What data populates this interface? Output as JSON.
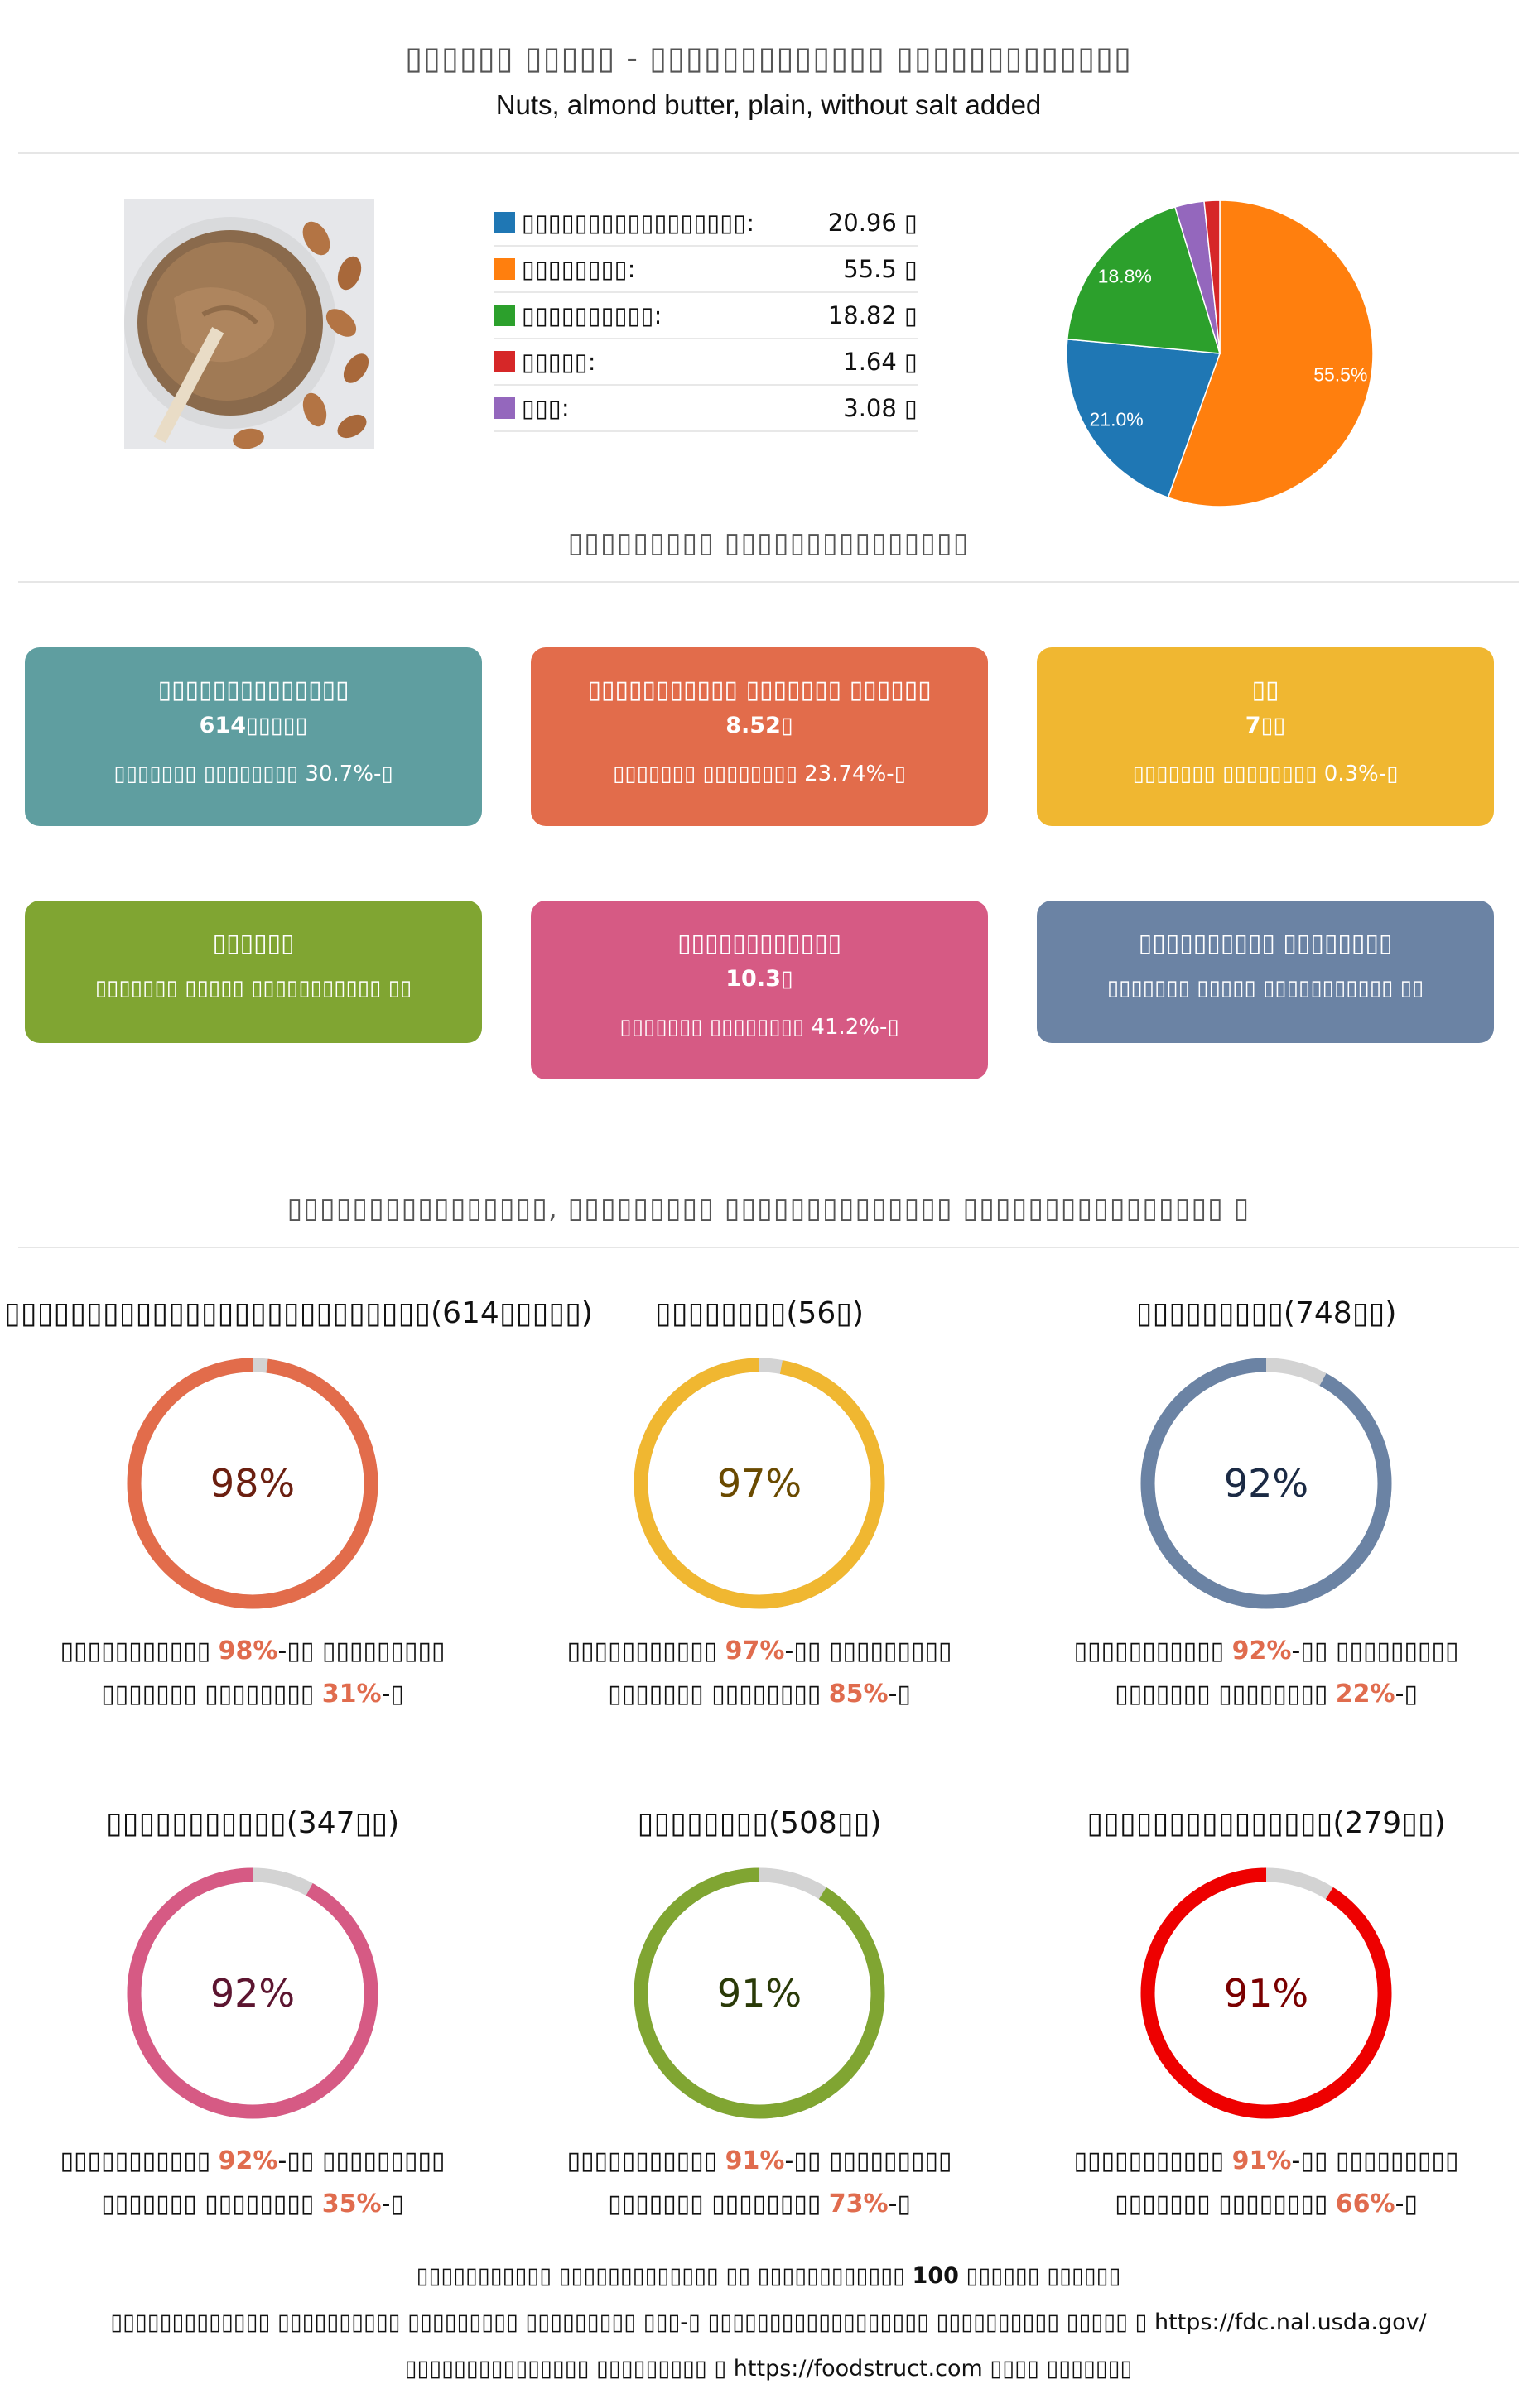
{
  "header": {
    "title": "▯▯▯▯▯▯ ▯▯▯▯▯ - ▯▯▯▯▯▯▯▯▯▯▯▯▯ ▯▯▯▯▯▯▯▯▯▯▯▯▯",
    "subtitle": "Nuts, almond butter, plain, without salt added"
  },
  "legend": [
    {
      "label": "▯▯▯▯▯▯▯▯▯▯▯▯▯▯▯▯▯:",
      "value": "20.96 ▯",
      "color": "#1f77b4"
    },
    {
      "label": "▯▯▯▯▯▯▯▯:",
      "value": "55.5 ▯",
      "color": "#ff7f0e"
    },
    {
      "label": "▯▯▯▯▯▯▯▯▯▯:",
      "value": "18.82 ▯",
      "color": "#2ca02c"
    },
    {
      "label": "▯▯▯▯▯:",
      "value": "1.64 ▯",
      "color": "#d62728"
    },
    {
      "label": "▯▯▯:",
      "value": "3.08 ▯",
      "color": "#9467bd"
    }
  ],
  "chart_data": {
    "type": "pie",
    "slices": [
      {
        "value": 55.5,
        "label": "55.5%",
        "color": "#ff7f0e"
      },
      {
        "value": 21.0,
        "label": "21.0%",
        "color": "#1f77b4"
      },
      {
        "value": 18.8,
        "label": "18.8%",
        "color": "#2ca02c"
      },
      {
        "value": 3.08,
        "label": "",
        "color": "#9467bd"
      },
      {
        "value": 1.64,
        "label": "",
        "color": "#d62728"
      }
    ]
  },
  "section1": {
    "title": "▯▯▯▯▯▯▯▯▯ ▯▯▯▯▯▯▯▯▯▯▯▯▯▯▯"
  },
  "cards": [
    {
      "title": "▯▯▯▯▯▯▯▯▯▯▯▯▯▯",
      "value": "614▯▯▯▯▯",
      "note": "▯▯▯▯▯▯▯ ▯▯▯▯▯▯▯▯ 30.7%-▯",
      "color": "#5f9ea0"
    },
    {
      "title": "▯▯▯▯▯▯▯▯▯▯▯ ▯▯▯▯▯▯▯ ▯▯▯▯▯▯",
      "value": "8.52▯",
      "note": "▯▯▯▯▯▯▯ ▯▯▯▯▯▯▯▯ 23.74%-▯",
      "color": "#e26c4b"
    },
    {
      "title": "▯▯",
      "value": "7▯▯",
      "note": "▯▯▯▯▯▯▯ ▯▯▯▯▯▯▯▯ 0.3%-▯",
      "color": "#f0b731"
    },
    {
      "title": "▯▯▯▯▯▯",
      "value": "",
      "note": "▯▯▯▯▯▯▯ ▯▯▯▯▯ ▯▯▯▯▯▯▯▯▯▯▯ ▯▯",
      "color": "#80a532"
    },
    {
      "title": "▯▯▯▯▯▯▯▯▯▯▯▯",
      "value": "10.3▯",
      "note": "▯▯▯▯▯▯▯ ▯▯▯▯▯▯▯▯ 41.2%-▯",
      "color": "#d65a84"
    },
    {
      "title": "▯▯▯▯▯▯▯▯▯▯ ▯▯▯▯▯▯▯▯",
      "value": "",
      "note": "▯▯▯▯▯▯▯ ▯▯▯▯▯ ▯▯▯▯▯▯▯▯▯▯▯ ▯▯",
      "color": "#6b83a4"
    }
  ],
  "section2": {
    "title": "▯▯▯▯▯▯▯▯▯▯▯▯▯▯▯▯, ▯▯▯▯▯▯▯▯▯ ▯▯▯▯▯▯▯▯▯▯▯▯▯▯ ▯▯▯▯▯▯▯▯▯▯▯▯▯▯▯▯ ▯"
  },
  "gauges": [
    {
      "title": "▯▯▯▯▯▯▯▯▯▯▯▯▯▯▯▯▯▯▯▯▯▯▯▯▯▯(614▯▯▯▯▯)",
      "value": 98,
      "label": "98%",
      "color": "#e26c4b",
      "text_color": "#6b1f10",
      "desc1a": "▯▯▯▯▯▯▯▯▯▯▯ ",
      "desc1b": "98%",
      "desc1c": "-▯▯ ▯▯▯▯▯▯▯▯▯",
      "desc2a": "▯▯▯▯▯▯▯ ▯▯▯▯▯▯▯▯ ",
      "desc2b": "31%",
      "desc2c": "-▯"
    },
    {
      "title": "▯▯▯▯▯▯▯▯(56▯)",
      "value": 97,
      "label": "97%",
      "color": "#f0b731",
      "text_color": "#6a4a00",
      "desc1a": "▯▯▯▯▯▯▯▯▯▯▯ ",
      "desc1b": "97%",
      "desc1c": "-▯▯ ▯▯▯▯▯▯▯▯▯",
      "desc2a": "▯▯▯▯▯▯▯ ▯▯▯▯▯▯▯▯ ",
      "desc2b": "85%",
      "desc2c": "-▯"
    },
    {
      "title": "▯▯▯▯▯▯▯▯▯(748▯▯)",
      "value": 92,
      "label": "92%",
      "color": "#6b83a4",
      "text_color": "#1b2a44",
      "desc1a": "▯▯▯▯▯▯▯▯▯▯▯ ",
      "desc1b": "92%",
      "desc1c": "-▯▯ ▯▯▯▯▯▯▯▯▯",
      "desc2a": "▯▯▯▯▯▯▯ ▯▯▯▯▯▯▯▯ ",
      "desc2b": "22%",
      "desc2c": "-▯"
    },
    {
      "title": "▯▯▯▯▯▯▯▯▯▯▯(347▯▯)",
      "value": 92,
      "label": "92%",
      "color": "#d65a84",
      "text_color": "#5c1530",
      "desc1a": "▯▯▯▯▯▯▯▯▯▯▯ ",
      "desc1b": "92%",
      "desc1c": "-▯▯ ▯▯▯▯▯▯▯▯▯",
      "desc2a": "▯▯▯▯▯▯▯ ▯▯▯▯▯▯▯▯ ",
      "desc2b": "35%",
      "desc2c": "-▯"
    },
    {
      "title": "▯▯▯▯▯▯▯▯(508▯▯)",
      "value": 91,
      "label": "91%",
      "color": "#80a532",
      "text_color": "#2a3a08",
      "desc1a": "▯▯▯▯▯▯▯▯▯▯▯ ",
      "desc1b": "91%",
      "desc1c": "-▯▯ ▯▯▯▯▯▯▯▯▯",
      "desc2a": "▯▯▯▯▯▯▯ ▯▯▯▯▯▯▯▯ ",
      "desc2b": "73%",
      "desc2c": "-▯"
    },
    {
      "title": "▯▯▯▯▯▯▯▯▯▯▯▯▯▯▯(279▯▯)",
      "value": 91,
      "label": "91%",
      "color": "#ee0000",
      "text_color": "#7a0000",
      "desc1a": "▯▯▯▯▯▯▯▯▯▯▯ ",
      "desc1b": "91%",
      "desc1c": "-▯▯ ▯▯▯▯▯▯▯▯▯",
      "desc2a": "▯▯▯▯▯▯▯ ▯▯▯▯▯▯▯▯ ",
      "desc2b": "66%",
      "desc2c": "-▯"
    }
  ],
  "footer": {
    "line1a": "▯▯▯▯▯▯▯▯▯▯▯ ▯▯▯▯▯▯▯▯▯▯▯▯▯ ▯▯ ▯▯▯▯▯▯▯▯▯▯▯▯ ",
    "line1b": "100",
    "line1c": " ▯▯▯▯▯▯ ▯▯▯▯▯▯",
    "line2": "▯▯▯▯▯▯▯▯▯▯▯▯▯ ▯▯▯▯▯▯▯▯▯▯ ▯▯▯▯▯▯▯▯▯ ▯▯▯▯▯▯▯▯▯ ▯▯▯-▯ ▯▯▯▯▯▯▯▯▯▯▯▯▯▯▯▯▯▯ ▯▯▯▯▯▯▯▯▯▯ ▯▯▯▯▯ ▯ https://fdc.nal.usda.gov/",
    "line3": "▯▯▯▯▯▯▯▯▯▯▯▯▯▯▯ ▯▯▯▯▯▯▯▯▯ ▯ https://foodstruct.com ▯▯▯▯ ▯▯▯▯▯▯▯"
  }
}
